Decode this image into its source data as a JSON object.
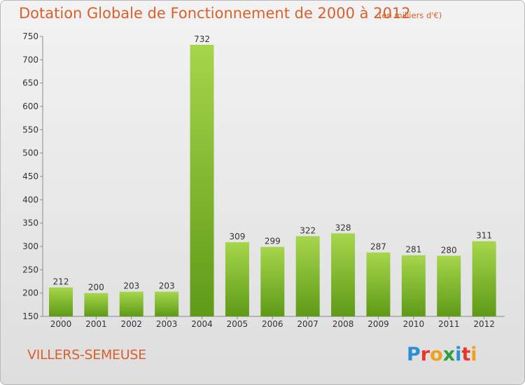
{
  "title": "Dotation Globale de Fonctionnement de 2000 à 2012",
  "subtitle": "(en milliers d'€)",
  "city": "VILLERS-SEMEUSE",
  "logo": {
    "letters": [
      "P",
      "r",
      "o",
      "x",
      "i",
      "t",
      "i"
    ],
    "colors": [
      "#2b8fd6",
      "#e7352c",
      "#f2a01b",
      "#2e9e3a",
      "#2b8fd6",
      "#e7352c",
      "#f2a01b"
    ]
  },
  "colors": {
    "accent": "#d9602c",
    "bar_top": "#a6d64b",
    "bar_bottom": "#5e9a17"
  },
  "chart_data": {
    "type": "bar",
    "title": "Dotation Globale de Fonctionnement de 2000 à 2012",
    "xlabel": "",
    "ylabel": "",
    "categories": [
      "2000",
      "2001",
      "2002",
      "2003",
      "2004",
      "2005",
      "2006",
      "2007",
      "2008",
      "2009",
      "2010",
      "2011",
      "2012"
    ],
    "values": [
      212,
      200,
      203,
      203,
      732,
      309,
      299,
      322,
      328,
      287,
      281,
      280,
      311
    ],
    "ylim": [
      150,
      750
    ],
    "yticks": [
      150,
      200,
      250,
      300,
      350,
      400,
      450,
      500,
      550,
      600,
      650,
      700,
      750
    ],
    "grid": false
  }
}
